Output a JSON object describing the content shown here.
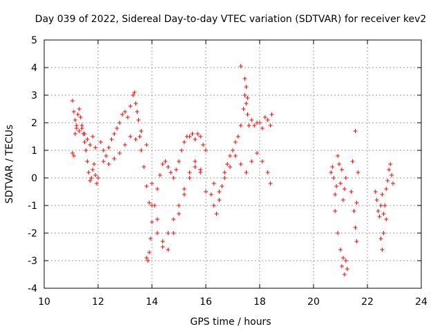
{
  "chart_data": {
    "type": "scatter",
    "title": "Day 039 of 2022, Sidereal Day-to-day VTEC variation (SDTVAR) for receiver kev2",
    "xlabel": "GPS time / hours",
    "ylabel": "SDTVAR / TECUs",
    "xlim": [
      10,
      24
    ],
    "ylim": [
      -4,
      5
    ],
    "xticks": [
      "10",
      "12",
      "14",
      "16",
      "18",
      "20",
      "22",
      "24"
    ],
    "yticks": [
      "5",
      "4",
      "3",
      "2",
      "1",
      "0",
      "-1",
      "-2",
      "-3",
      "-4"
    ],
    "grid": true,
    "marker": "+",
    "color": "#ff0000",
    "series": [
      {
        "name": "SDTVAR",
        "x": [
          11.05,
          11.1,
          11.15,
          11.2,
          11.25,
          11.3,
          11.35,
          11.4,
          11.45,
          11.5,
          11.55,
          11.6,
          11.65,
          11.7,
          11.75,
          11.8,
          11.85,
          11.9,
          11.95,
          12.0,
          11.05,
          11.1,
          11.15,
          11.2,
          11.3,
          11.4,
          11.5,
          11.6,
          11.7,
          11.8,
          11.9,
          12.1,
          12.2,
          12.3,
          12.4,
          12.5,
          12.6,
          12.7,
          12.8,
          12.9,
          13.0,
          13.1,
          13.2,
          13.3,
          13.35,
          13.4,
          13.45,
          13.5,
          13.55,
          13.6,
          13.7,
          13.8,
          13.9,
          14.0,
          12.2,
          12.4,
          12.6,
          12.8,
          13.0,
          13.2,
          13.4,
          13.6,
          13.8,
          13.8,
          13.85,
          13.9,
          13.95,
          14.0,
          14.1,
          14.2,
          14.3,
          14.4,
          14.5,
          14.6,
          14.7,
          14.8,
          14.9,
          15.0,
          15.1,
          15.2,
          15.3,
          15.4,
          15.5,
          15.6,
          15.7,
          15.8,
          15.9,
          16.0,
          14.0,
          14.2,
          14.4,
          14.6,
          14.8,
          15.0,
          15.2,
          15.4,
          15.6,
          15.8,
          16.0,
          14.2,
          14.4,
          14.6,
          14.8,
          15.0,
          15.2,
          15.4,
          15.6,
          15.8,
          16.2,
          16.3,
          16.4,
          16.5,
          16.6,
          16.7,
          16.8,
          16.9,
          17.0,
          17.1,
          17.2,
          17.3,
          17.4,
          17.45,
          17.5,
          17.55,
          17.6,
          17.7,
          17.8,
          17.9,
          18.0,
          18.1,
          18.2,
          18.3,
          18.4,
          18.45,
          16.3,
          16.5,
          16.7,
          16.9,
          17.1,
          17.3,
          17.5,
          17.7,
          17.9,
          18.1,
          18.3,
          18.4,
          17.3,
          17.45,
          17.5,
          17.55,
          20.65,
          20.7,
          20.75,
          20.8,
          20.85,
          20.9,
          20.95,
          21.0,
          21.05,
          21.1,
          21.15,
          21.2,
          20.8,
          20.9,
          21.0,
          21.05,
          21.1,
          21.15,
          21.2,
          21.25,
          21.4,
          21.45,
          21.5,
          21.55,
          21.6,
          21.65,
          21.55,
          21.6,
          22.3,
          22.35,
          22.4,
          22.45,
          22.5,
          22.55,
          22.6,
          22.65,
          22.7,
          22.75,
          22.8,
          22.85,
          22.9,
          22.95,
          22.5,
          22.55,
          22.6,
          22.7
        ],
        "y": [
          2.8,
          2.4,
          2.1,
          1.9,
          2.3,
          2.5,
          2.2,
          1.8,
          1.6,
          1.3,
          1.0,
          0.6,
          0.2,
          -0.1,
          0.0,
          0.3,
          0.5,
          0.1,
          -0.2,
          0.0,
          0.9,
          0.8,
          1.6,
          1.8,
          1.7,
          1.9,
          1.6,
          1.4,
          1.2,
          1.5,
          1.1,
          1.3,
          1.0,
          0.8,
          1.1,
          1.4,
          1.6,
          1.8,
          2.0,
          2.3,
          2.4,
          2.2,
          2.6,
          3.0,
          3.1,
          2.7,
          2.4,
          2.1,
          1.5,
          1.0,
          0.4,
          -0.3,
          -0.9,
          -1.0,
          0.6,
          0.5,
          0.7,
          0.9,
          1.2,
          1.5,
          1.4,
          1.7,
          1.2,
          -2.9,
          -3.0,
          -2.7,
          -2.2,
          -1.6,
          -1.0,
          -0.4,
          0.1,
          0.5,
          0.6,
          0.4,
          0.2,
          0.0,
          0.3,
          0.6,
          1.0,
          1.3,
          1.5,
          1.5,
          1.6,
          1.4,
          1.6,
          1.5,
          1.2,
          1.0,
          -0.2,
          -1.5,
          -2.3,
          -2.6,
          -2.0,
          -1.3,
          -0.6,
          0.0,
          0.4,
          0.2,
          -0.5,
          -2.0,
          -2.5,
          -2.0,
          -1.5,
          -1.0,
          -0.4,
          0.2,
          0.6,
          0.3,
          -0.6,
          -1.0,
          -1.3,
          -0.8,
          -0.3,
          0.2,
          0.5,
          0.8,
          1.0,
          1.3,
          1.5,
          1.9,
          2.5,
          3.0,
          2.7,
          2.3,
          1.9,
          2.1,
          1.9,
          2.0,
          2.0,
          1.8,
          2.2,
          2.1,
          1.9,
          2.3,
          -0.2,
          -0.5,
          0.0,
          0.4,
          0.8,
          0.5,
          0.2,
          0.6,
          0.9,
          0.6,
          0.2,
          -0.2,
          4.05,
          3.6,
          3.3,
          2.9,
          0.2,
          0.4,
          0.0,
          -0.6,
          -0.3,
          0.8,
          0.5,
          -0.2,
          0.3,
          -0.8,
          -0.4,
          0.0,
          -1.2,
          -2.0,
          -2.6,
          -3.2,
          -2.9,
          -3.5,
          -3.0,
          -3.3,
          -0.5,
          0.6,
          -1.2,
          1.7,
          -2.3,
          0.2,
          -1.8,
          -0.9,
          -0.5,
          -0.8,
          -1.2,
          -1.4,
          -1.0,
          -0.6,
          -1.3,
          -1.0,
          -0.4,
          -0.1,
          0.3,
          0.5,
          0.1,
          -0.2,
          -2.2,
          -2.6,
          -2.0,
          -1.5
        ]
      }
    ]
  }
}
